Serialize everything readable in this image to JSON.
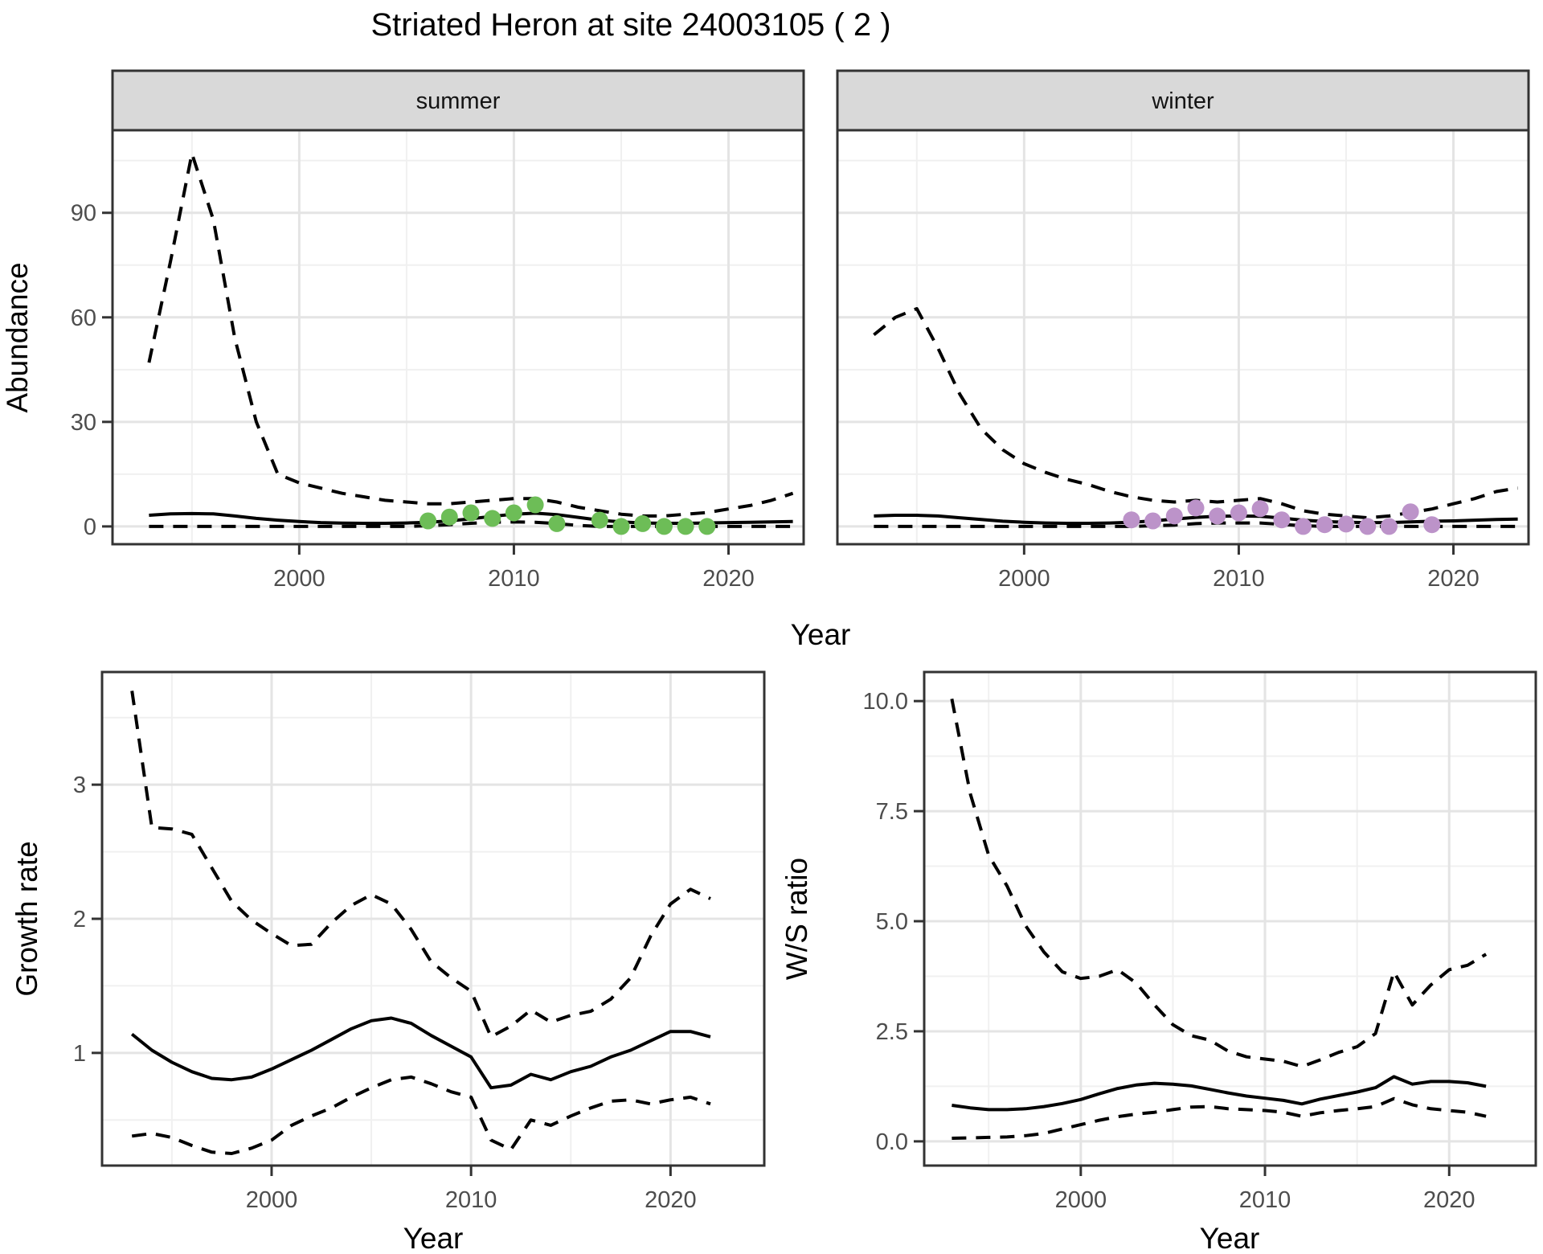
{
  "title": "Striated Heron at site 24003105 ( 2 )",
  "labels": {
    "year": "Year",
    "abundance": "Abundance",
    "growth_rate": "Growth rate",
    "ws_ratio": "W/S ratio"
  },
  "colors": {
    "summer_points": "#6dbd57",
    "winter_points": "#bc93c9",
    "line": "#000000",
    "strip_bg": "#d9d9d9",
    "strip_border": "#333333",
    "panel_border": "#333333",
    "grid_major": "#e4e4e4",
    "grid_minor": "#f0f0f0",
    "tick_mark": "#333333",
    "axis_text": "#4d4d4d"
  },
  "chart_data": [
    {
      "id": "abundance-summer",
      "type": "line",
      "facet_label": "summer",
      "ylabel": "Abundance",
      "xlabel": "Year",
      "xlim": [
        1991.3,
        2023.5
      ],
      "ylim": [
        -5.1,
        113.7
      ],
      "x_major": [
        2000,
        2010,
        2020
      ],
      "x_major_labels": [
        "2000",
        "2010",
        "2020"
      ],
      "x_minor": [
        1995,
        2005,
        2015
      ],
      "y_major": [
        0,
        30,
        60,
        90
      ],
      "y_major_labels": [
        "0",
        "30",
        "60",
        "90"
      ],
      "y_minor": [
        15,
        45,
        75,
        105
      ],
      "series": [
        {
          "name": "upper-ci",
          "kind": "line",
          "dash": true,
          "x": [
            1993,
            1994,
            1995,
            1996,
            1997,
            1998,
            1999,
            2000,
            2001,
            2002,
            2003,
            2004,
            2005,
            2006,
            2007,
            2008,
            2009,
            2010,
            2011,
            2012,
            2013,
            2014,
            2015,
            2016,
            2017,
            2018,
            2019,
            2020,
            2021,
            2022,
            2023
          ],
          "y": [
            47,
            76,
            107,
            88,
            54,
            30,
            15,
            12.5,
            11,
            9.5,
            8.5,
            7.5,
            7,
            6.5,
            6.5,
            7,
            7.5,
            8,
            8,
            7,
            5.5,
            4.5,
            3.5,
            3,
            3,
            3.5,
            4,
            5,
            6,
            7.5,
            9.5
          ]
        },
        {
          "name": "median",
          "kind": "line",
          "dash": false,
          "x": [
            1993,
            1994,
            1995,
            1996,
            1997,
            1998,
            1999,
            2000,
            2001,
            2002,
            2003,
            2004,
            2005,
            2006,
            2007,
            2008,
            2009,
            2010,
            2011,
            2012,
            2013,
            2014,
            2015,
            2016,
            2017,
            2018,
            2019,
            2020,
            2021,
            2022,
            2023
          ],
          "y": [
            3.2,
            3.6,
            3.7,
            3.6,
            3.0,
            2.3,
            1.8,
            1.4,
            1.1,
            0.95,
            0.9,
            0.9,
            1.0,
            1.2,
            1.6,
            2.2,
            2.9,
            3.5,
            3.8,
            3.4,
            2.6,
            1.8,
            1.3,
            1.0,
            0.9,
            0.9,
            1.0,
            1.1,
            1.2,
            1.3,
            1.4
          ]
        },
        {
          "name": "lower-ci",
          "kind": "line",
          "dash": true,
          "x": [
            1993,
            1994,
            1995,
            1996,
            1997,
            1998,
            1999,
            2000,
            2001,
            2002,
            2003,
            2004,
            2005,
            2006,
            2007,
            2008,
            2009,
            2010,
            2011,
            2012,
            2013,
            2014,
            2015,
            2016,
            2017,
            2018,
            2019,
            2020,
            2021,
            2022,
            2023
          ],
          "y": [
            0,
            0,
            0,
            0,
            0,
            0,
            0,
            0,
            0,
            0,
            0,
            0,
            0,
            0.2,
            0.5,
            0.9,
            1.2,
            1.3,
            1.2,
            0.8,
            0.3,
            0,
            0,
            0,
            0,
            0,
            0,
            0,
            0,
            0,
            0
          ]
        },
        {
          "name": "observed-points",
          "kind": "points",
          "color_key": "summer_points",
          "x": [
            2006,
            2007,
            2008,
            2009,
            2010,
            2011,
            2012,
            2014,
            2015,
            2016,
            2017,
            2018,
            2019
          ],
          "y": [
            1.6,
            2.7,
            3.9,
            2.3,
            3.9,
            6.2,
            0.8,
            1.8,
            0,
            0.8,
            0,
            0,
            0
          ]
        }
      ]
    },
    {
      "id": "abundance-winter",
      "type": "line",
      "facet_label": "winter",
      "ylabel": "Abundance",
      "xlabel": "Year",
      "xlim": [
        1991.3,
        2023.5
      ],
      "ylim": [
        -5.1,
        113.7
      ],
      "x_major": [
        2000,
        2010,
        2020
      ],
      "x_major_labels": [
        "2000",
        "2010",
        "2020"
      ],
      "x_minor": [
        1995,
        2005,
        2015
      ],
      "y_major": [
        0,
        30,
        60,
        90
      ],
      "y_major_labels": [],
      "y_minor": [
        15,
        45,
        75,
        105
      ],
      "series": [
        {
          "name": "upper-ci",
          "kind": "line",
          "dash": true,
          "x": [
            1993,
            1994,
            1995,
            1996,
            1997,
            1998,
            1999,
            2000,
            2001,
            2002,
            2003,
            2004,
            2005,
            2006,
            2007,
            2008,
            2009,
            2010,
            2011,
            2012,
            2013,
            2014,
            2015,
            2016,
            2017,
            2018,
            2019,
            2020,
            2021,
            2022,
            2023
          ],
          "y": [
            55,
            60,
            62.5,
            51,
            38,
            28,
            22,
            18,
            15.5,
            13.5,
            12,
            10,
            8.5,
            7.5,
            7,
            7.5,
            7,
            7.5,
            8,
            6.5,
            4.5,
            3.5,
            3,
            2.5,
            3,
            4,
            5,
            6.5,
            8,
            10,
            11
          ]
        },
        {
          "name": "median",
          "kind": "line",
          "dash": false,
          "x": [
            1993,
            1994,
            1995,
            1996,
            1997,
            1998,
            1999,
            2000,
            2001,
            2002,
            2003,
            2004,
            2005,
            2006,
            2007,
            2008,
            2009,
            2010,
            2011,
            2012,
            2013,
            2014,
            2015,
            2016,
            2017,
            2018,
            2019,
            2020,
            2021,
            2022,
            2023
          ],
          "y": [
            3.0,
            3.2,
            3.2,
            3.0,
            2.5,
            2.0,
            1.5,
            1.2,
            1.0,
            0.9,
            0.9,
            1.0,
            1.2,
            1.6,
            2.1,
            2.6,
            2.9,
            3.0,
            2.9,
            2.4,
            1.8,
            1.4,
            1.2,
            1.1,
            1.1,
            1.3,
            1.5,
            1.6,
            1.8,
            2.0,
            2.1
          ]
        },
        {
          "name": "lower-ci",
          "kind": "line",
          "dash": true,
          "x": [
            1993,
            1994,
            1995,
            1996,
            1997,
            1998,
            1999,
            2000,
            2001,
            2002,
            2003,
            2004,
            2005,
            2006,
            2007,
            2008,
            2009,
            2010,
            2011,
            2012,
            2013,
            2014,
            2015,
            2016,
            2017,
            2018,
            2019,
            2020,
            2021,
            2022,
            2023
          ],
          "y": [
            0,
            0,
            0,
            0,
            0,
            0,
            0,
            0,
            0,
            0,
            0,
            0,
            0,
            0.2,
            0.4,
            0.8,
            1.0,
            1.0,
            1.0,
            0.6,
            0.2,
            0,
            0,
            0,
            0,
            0,
            0,
            0,
            0,
            0,
            0
          ]
        },
        {
          "name": "observed-points",
          "kind": "points",
          "color_key": "winter_points",
          "x": [
            2005,
            2006,
            2007,
            2008,
            2009,
            2010,
            2011,
            2012,
            2013,
            2014,
            2015,
            2016,
            2017,
            2018,
            2019
          ],
          "y": [
            1.9,
            1.6,
            3.0,
            5.3,
            3.0,
            3.9,
            5.1,
            1.9,
            0,
            0.5,
            0.7,
            0,
            0,
            4.2,
            0.5
          ]
        }
      ]
    },
    {
      "id": "growth-rate",
      "type": "line",
      "facet_label": null,
      "ylabel": "Growth rate",
      "xlabel": "Year",
      "xlim": [
        1991.5,
        2024.7
      ],
      "ylim": [
        0.16,
        3.84
      ],
      "x_major": [
        2000,
        2010,
        2020
      ],
      "x_major_labels": [
        "2000",
        "2010",
        "2020"
      ],
      "x_minor": [
        1995,
        2005,
        2015
      ],
      "y_major": [
        1,
        2,
        3
      ],
      "y_major_labels": [
        "1",
        "2",
        "3"
      ],
      "y_minor": [
        0.5,
        1.5,
        2.5,
        3.5
      ],
      "series": [
        {
          "name": "upper-ci",
          "kind": "line",
          "dash": true,
          "x": [
            1993,
            1994,
            1995,
            1996,
            1997,
            1998,
            1999,
            2000,
            2001,
            2002,
            2003,
            2004,
            2005,
            2006,
            2007,
            2008,
            2009,
            2010,
            2011,
            2012,
            2013,
            2014,
            2015,
            2016,
            2017,
            2018,
            2019,
            2020,
            2021,
            2022
          ],
          "y": [
            3.7,
            2.68,
            2.67,
            2.63,
            2.38,
            2.13,
            1.99,
            1.89,
            1.8,
            1.81,
            1.97,
            2.1,
            2.18,
            2.11,
            1.92,
            1.68,
            1.56,
            1.46,
            1.12,
            1.2,
            1.32,
            1.23,
            1.28,
            1.31,
            1.4,
            1.56,
            1.87,
            2.11,
            2.22,
            2.15
          ]
        },
        {
          "name": "median",
          "kind": "line",
          "dash": false,
          "x": [
            1993,
            1994,
            1995,
            1996,
            1997,
            1998,
            1999,
            2000,
            2001,
            2002,
            2003,
            2004,
            2005,
            2006,
            2007,
            2008,
            2009,
            2010,
            2011,
            2012,
            2013,
            2014,
            2015,
            2016,
            2017,
            2018,
            2019,
            2020,
            2021,
            2022
          ],
          "y": [
            1.14,
            1.02,
            0.93,
            0.86,
            0.81,
            0.8,
            0.82,
            0.88,
            0.95,
            1.02,
            1.1,
            1.18,
            1.24,
            1.26,
            1.22,
            1.13,
            1.05,
            0.97,
            0.74,
            0.76,
            0.84,
            0.8,
            0.86,
            0.9,
            0.97,
            1.02,
            1.09,
            1.16,
            1.16,
            1.12
          ]
        },
        {
          "name": "lower-ci",
          "kind": "line",
          "dash": true,
          "x": [
            1993,
            1994,
            1995,
            1996,
            1997,
            1998,
            1999,
            2000,
            2001,
            2002,
            2003,
            2004,
            2005,
            2006,
            2007,
            2008,
            2009,
            2010,
            2011,
            2012,
            2013,
            2014,
            2015,
            2016,
            2017,
            2018,
            2019,
            2020,
            2021,
            2022
          ],
          "y": [
            0.38,
            0.4,
            0.37,
            0.31,
            0.26,
            0.25,
            0.29,
            0.35,
            0.46,
            0.53,
            0.59,
            0.67,
            0.74,
            0.8,
            0.82,
            0.77,
            0.71,
            0.67,
            0.35,
            0.28,
            0.5,
            0.46,
            0.53,
            0.59,
            0.64,
            0.65,
            0.62,
            0.65,
            0.67,
            0.62
          ]
        }
      ]
    },
    {
      "id": "ws-ratio",
      "type": "line",
      "facet_label": null,
      "ylabel": "W/S ratio",
      "xlabel": "Year",
      "xlim": [
        1991.5,
        2024.7
      ],
      "ylim": [
        -0.55,
        10.66
      ],
      "x_major": [
        2000,
        2010,
        2020
      ],
      "x_major_labels": [
        "2000",
        "2010",
        "2020"
      ],
      "x_minor": [
        1995,
        2005,
        2015
      ],
      "y_major": [
        0,
        2.5,
        5,
        7.5,
        10
      ],
      "y_major_labels": [
        "0.0",
        "2.5",
        "5.0",
        "7.5",
        "10.0"
      ],
      "y_minor": [
        1.25,
        3.75,
        6.25,
        8.75
      ],
      "series": [
        {
          "name": "upper-ci",
          "kind": "line",
          "dash": true,
          "x": [
            1993,
            1994,
            1995,
            1996,
            1997,
            1998,
            1999,
            2000,
            2001,
            2002,
            2003,
            2004,
            2005,
            2006,
            2007,
            2008,
            2009,
            2010,
            2011,
            2012,
            2013,
            2014,
            2015,
            2016,
            2017,
            2018,
            2019,
            2020,
            2021,
            2022
          ],
          "y": [
            10.05,
            7.9,
            6.5,
            5.8,
            4.9,
            4.3,
            3.85,
            3.7,
            3.75,
            3.9,
            3.6,
            3.1,
            2.65,
            2.4,
            2.3,
            2.05,
            1.92,
            1.87,
            1.82,
            1.7,
            1.85,
            2.02,
            2.15,
            2.45,
            3.85,
            3.1,
            3.55,
            3.9,
            4.0,
            4.25
          ]
        },
        {
          "name": "median",
          "kind": "line",
          "dash": false,
          "x": [
            1993,
            1994,
            1995,
            1996,
            1997,
            1998,
            1999,
            2000,
            2001,
            2002,
            2003,
            2004,
            2005,
            2006,
            2007,
            2008,
            2009,
            2010,
            2011,
            2012,
            2013,
            2014,
            2015,
            2016,
            2017,
            2018,
            2019,
            2020,
            2021,
            2022
          ],
          "y": [
            0.82,
            0.76,
            0.72,
            0.72,
            0.74,
            0.79,
            0.86,
            0.95,
            1.08,
            1.2,
            1.28,
            1.32,
            1.3,
            1.26,
            1.18,
            1.1,
            1.03,
            0.98,
            0.93,
            0.85,
            0.96,
            1.04,
            1.12,
            1.22,
            1.47,
            1.3,
            1.36,
            1.36,
            1.33,
            1.25
          ]
        },
        {
          "name": "lower-ci",
          "kind": "line",
          "dash": true,
          "x": [
            1993,
            1994,
            1995,
            1996,
            1997,
            1998,
            1999,
            2000,
            2001,
            2002,
            2003,
            2004,
            2005,
            2006,
            2007,
            2008,
            2009,
            2010,
            2011,
            2012,
            2013,
            2014,
            2015,
            2016,
            2017,
            2018,
            2019,
            2020,
            2021,
            2022
          ],
          "y": [
            0.07,
            0.08,
            0.09,
            0.1,
            0.13,
            0.18,
            0.28,
            0.38,
            0.48,
            0.56,
            0.62,
            0.66,
            0.72,
            0.78,
            0.79,
            0.74,
            0.72,
            0.7,
            0.66,
            0.57,
            0.65,
            0.7,
            0.74,
            0.79,
            0.97,
            0.83,
            0.74,
            0.7,
            0.66,
            0.57
          ]
        }
      ]
    }
  ]
}
